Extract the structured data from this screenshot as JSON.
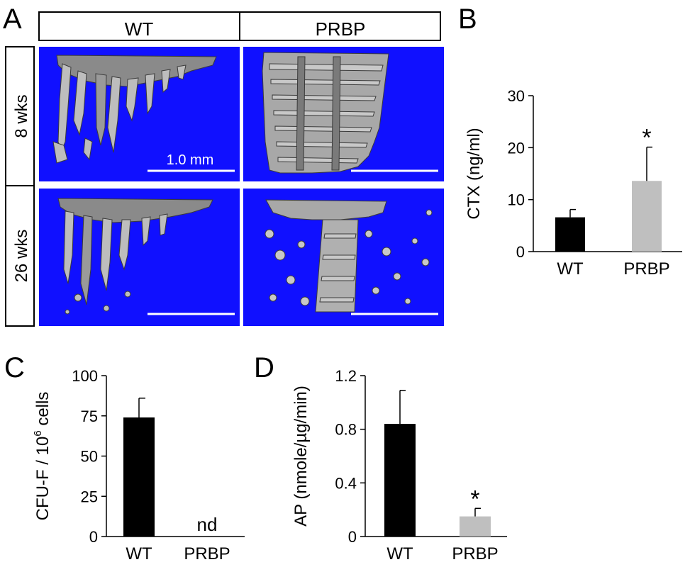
{
  "figure": {
    "panel_labels": [
      "A",
      "B",
      "C",
      "D"
    ],
    "panel_a": {
      "columns": [
        "WT",
        "PRBP"
      ],
      "rows": [
        "8 wks",
        "26 wks"
      ],
      "scale_bar_label": "1.0 mm",
      "background_color": "#1010ff"
    }
  },
  "chart_data": [
    {
      "panel": "B",
      "type": "bar",
      "categories": [
        "WT",
        "PRBP"
      ],
      "values": [
        6.6,
        13.6
      ],
      "errors": [
        1.5,
        6.5
      ],
      "significance": [
        "",
        "*"
      ],
      "ylabel": "CTX (ng/ml)",
      "ylim": [
        0,
        30
      ],
      "yticks": [
        0,
        10,
        20,
        30
      ],
      "colors": [
        "#000000",
        "#bfbfbf"
      ]
    },
    {
      "panel": "C",
      "type": "bar",
      "categories": [
        "WT",
        "PRBP"
      ],
      "values": [
        74,
        0
      ],
      "errors": [
        12,
        0
      ],
      "value_annotations": [
        "",
        "nd"
      ],
      "ylabel_main": "CFU-F / 10",
      "ylabel_sup": "6",
      "ylabel_tail": " cells",
      "ylim": [
        0,
        100
      ],
      "yticks": [
        0,
        25,
        50,
        75,
        100
      ],
      "colors": [
        "#000000",
        "#bfbfbf"
      ]
    },
    {
      "panel": "D",
      "type": "bar",
      "categories": [
        "WT",
        "PRBP"
      ],
      "values": [
        0.84,
        0.15
      ],
      "errors": [
        0.25,
        0.06
      ],
      "significance": [
        "",
        "*"
      ],
      "ylabel": "AP (nmole/µg/min)",
      "ylim": [
        0,
        1.2
      ],
      "yticks": [
        0,
        0.4,
        0.8,
        1.2
      ],
      "colors": [
        "#000000",
        "#bfbfbf"
      ]
    }
  ]
}
